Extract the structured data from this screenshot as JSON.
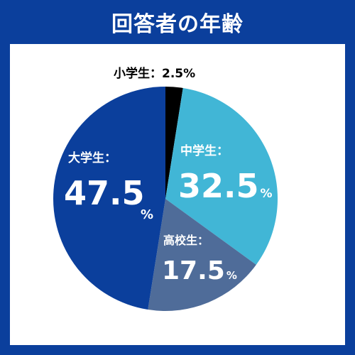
{
  "header": {
    "title": "回答者の年齢"
  },
  "colors": {
    "frame": "#0b3f9c",
    "elementary": "#000000",
    "junior_high": "#41b6d6",
    "high_school": "#4f6c99",
    "university": "#0b3f9c"
  },
  "chart_data": {
    "type": "pie",
    "title": "回答者の年齢",
    "slices": [
      {
        "label": "小学生：",
        "value": 2.5,
        "display": "2.5%"
      },
      {
        "label": "中学生：",
        "value": 32.5,
        "display": "32.5",
        "unit": "%"
      },
      {
        "label": "高校生：",
        "value": 17.5,
        "display": "17.5",
        "unit": "%"
      },
      {
        "label": "大学生：",
        "value": 47.5,
        "display": "47.5",
        "unit": "%"
      }
    ]
  }
}
